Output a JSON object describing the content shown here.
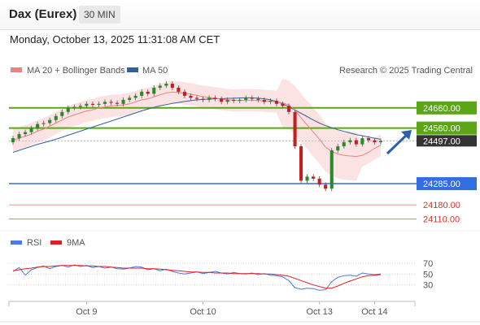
{
  "header": {
    "title": "Dax (Eurex)",
    "timeframe": "30 MIN"
  },
  "datetime": "Monday, October 13, 2025 11:31:08 AM CET",
  "legend": {
    "ma20_bb": "MA 20 + Bollinger Bands",
    "ma50": "MA 50",
    "copyright": "Research © 2025 Trading Central",
    "rsi": "RSI",
    "rsi9ma": "9MA"
  },
  "colors": {
    "ma20": "#f08080",
    "ma50": "#34609c",
    "bollinger_fill": "#fbd9d9",
    "resistance": "#5aa614",
    "support": "#2f6fe0",
    "target": "#e03030",
    "up_candle": "#2a8a2a",
    "down_candle": "#c02020",
    "rsi": "#4a7be0",
    "rsi_ma": "#e02020",
    "last_price_bg": "#333333"
  },
  "chart_data": {
    "type": "candlestick",
    "instrument": "Dax (Eurex)",
    "interval": "30 MIN",
    "x_ticks": [
      "Oct 9",
      "Oct 10",
      "Oct 13",
      "Oct 14"
    ],
    "price_axis": {
      "ymin": 24060,
      "ymax": 24800
    },
    "levels": [
      {
        "label": "24660.00",
        "value": 24660,
        "kind": "resistance"
      },
      {
        "label": "24560.00",
        "value": 24560,
        "kind": "resistance"
      },
      {
        "label": "24497.00",
        "value": 24497,
        "kind": "last"
      },
      {
        "label": "24285.00",
        "value": 24285,
        "kind": "support"
      },
      {
        "label": "24180.00",
        "value": 24180,
        "kind": "target"
      },
      {
        "label": "24110.00",
        "value": 24110,
        "kind": "target"
      }
    ],
    "close": [
      24510,
      24530,
      24540,
      24560,
      24580,
      24585,
      24600,
      24620,
      24640,
      24660,
      24665,
      24670,
      24680,
      24675,
      24680,
      24690,
      24685,
      24680,
      24700,
      24710,
      24720,
      24740,
      24730,
      24760,
      24770,
      24780,
      24760,
      24740,
      24720,
      24710,
      24705,
      24700,
      24710,
      24705,
      24690,
      24700,
      24695,
      24700,
      24710,
      24705,
      24700,
      24690,
      24695,
      24680,
      24670,
      24640,
      24470,
      24300,
      24320,
      24310,
      24280,
      24260,
      24450,
      24470,
      24490,
      24500,
      24480,
      24510,
      24500,
      24490,
      24497
    ],
    "ma20": [
      24500,
      24510,
      24520,
      24530,
      24545,
      24555,
      24570,
      24585,
      24600,
      24615,
      24625,
      24635,
      24645,
      24650,
      24660,
      24665,
      24670,
      24672,
      24675,
      24680,
      24690,
      24700,
      24705,
      24715,
      24725,
      24735,
      24738,
      24736,
      24732,
      24728,
      24722,
      24715,
      24712,
      24708,
      24703,
      24700,
      24698,
      24697,
      24698,
      24698,
      24697,
      24695,
      24693,
      24690,
      24685,
      24675,
      24650,
      24610,
      24575,
      24540,
      24505,
      24465,
      24445,
      24432,
      24425,
      24422,
      24420,
      24425,
      24440,
      24460,
      24475
    ],
    "ma50": [
      24440,
      24450,
      24460,
      24470,
      24480,
      24488,
      24496,
      24505,
      24515,
      24525,
      24535,
      24545,
      24555,
      24565,
      24575,
      24585,
      24595,
      24605,
      24615,
      24625,
      24635,
      24645,
      24655,
      24663,
      24670,
      24676,
      24682,
      24687,
      24692,
      24696,
      24700,
      24702,
      24704,
      24705,
      24706,
      24707,
      24708,
      24709,
      24710,
      24710,
      24708,
      24705,
      24700,
      24692,
      24680,
      24665,
      24650,
      24633,
      24617,
      24600,
      24585,
      24572,
      24562,
      24552,
      24544,
      24536,
      24528,
      24522,
      24516,
      24510,
      24505
    ],
    "rsi": [
      55,
      62,
      48,
      58,
      62,
      65,
      60,
      64,
      66,
      63,
      67,
      64,
      66,
      62,
      64,
      61,
      63,
      60,
      59,
      61,
      64,
      63,
      58,
      60,
      56,
      59,
      55,
      52,
      50,
      52,
      54,
      51,
      53,
      55,
      52,
      50,
      53,
      51,
      50,
      52,
      49,
      51,
      48,
      47,
      45,
      38,
      25,
      22,
      24,
      23,
      20,
      21,
      36,
      44,
      47,
      48,
      46,
      52,
      50,
      49,
      50
    ],
    "rsi_ma": [
      56,
      58,
      60,
      61,
      63,
      64,
      64,
      65,
      66,
      66,
      66,
      66,
      65,
      65,
      64,
      64,
      63,
      62,
      61,
      61,
      61,
      61,
      60,
      60,
      59,
      58,
      57,
      56,
      55,
      54,
      54,
      53,
      53,
      52,
      52,
      52,
      51,
      51,
      51,
      51,
      51,
      50,
      50,
      49,
      48,
      46,
      42,
      38,
      34,
      30,
      27,
      24,
      24,
      28,
      33,
      37,
      41,
      45,
      47,
      48,
      49
    ]
  },
  "rsi_panel": {
    "ymin": 10,
    "ymax": 85,
    "ticks": [
      "70",
      "50",
      "30"
    ]
  }
}
